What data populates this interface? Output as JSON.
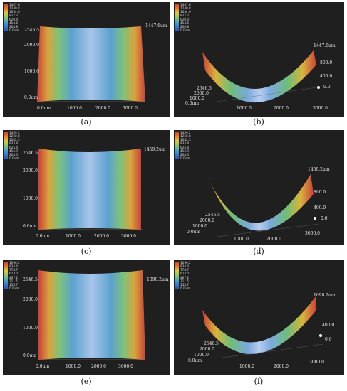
{
  "panels": [
    {
      "caption": "(a)",
      "scale": [
        "1447.6",
        "1240.8",
        "1034.0",
        "827.2",
        "620.4",
        "413.6",
        "206.8",
        "0.0um"
      ],
      "y_labels": [
        "2546.5",
        "2000.0",
        "1000.0",
        "0.0um"
      ],
      "x_labels": [
        "0.0um",
        "1000.0",
        "2000.0",
        "3000.0"
      ],
      "max_label": "1447.6um"
    },
    {
      "caption": "(b)",
      "scale": [
        "1447.6",
        "1240.8",
        "1034.0",
        "827.2",
        "620.4",
        "413.6",
        "206.8",
        "0.0um"
      ],
      "max_label": "1447.6um",
      "z_labels": [
        "800.0",
        "400.0",
        "0.0"
      ],
      "y_labels": [
        "2546.5",
        "2000.0",
        "1000.0",
        "0.0um"
      ],
      "x_labels": [
        "1000.0",
        "2000.0",
        "3000.0"
      ]
    },
    {
      "caption": "(c)",
      "scale": [
        "1459.2",
        "1250.8",
        "1042.3",
        "833.8",
        "625.4",
        "416.9",
        "208.5",
        "0.0um"
      ],
      "y_labels": [
        "2546.5",
        "2000.0",
        "1000.0",
        "0.0um"
      ],
      "x_labels": [
        "0.0um",
        "1000.0",
        "2000.0",
        "3000.0"
      ],
      "max_label": "1459.2um"
    },
    {
      "caption": "(d)",
      "scale": [
        "1459.2",
        "1250.8",
        "1042.3",
        "833.8",
        "625.4",
        "416.9",
        "208.5",
        "0.0um"
      ],
      "max_label": "1459.2um",
      "z_labels": [
        "800.0",
        "400.0",
        "0.0"
      ],
      "y_labels": [
        "2546.5",
        "2000.0",
        "1000.0",
        "0.0um"
      ],
      "x_labels": [
        "1000.0",
        "2000.0",
        "3000.0"
      ]
    },
    {
      "caption": "(e)",
      "scale": [
        "1090.2",
        "934.4",
        "778.7",
        "623.0",
        "467.2",
        "311.5",
        "155.7",
        "0.0um"
      ],
      "y_labels": [
        "2546.5",
        "2000.0",
        "1000.0",
        "0.0um"
      ],
      "x_labels": [
        "0.0um",
        "1000.0",
        "2000.0",
        "3000.0"
      ],
      "max_label": "1090.2um"
    },
    {
      "caption": "(f)",
      "scale": [
        "1090.2",
        "934.4",
        "778.7",
        "623.0",
        "467.2",
        "311.5",
        "155.7",
        "0.0um"
      ],
      "max_label": "1090.2um",
      "z_labels": [
        "400.0",
        "0.0"
      ],
      "y_labels": [
        "2546.5",
        "2000.0",
        "1000.0",
        "0.0um"
      ],
      "x_labels": [
        "1000.0",
        "2000.0",
        "3000.0"
      ]
    }
  ]
}
